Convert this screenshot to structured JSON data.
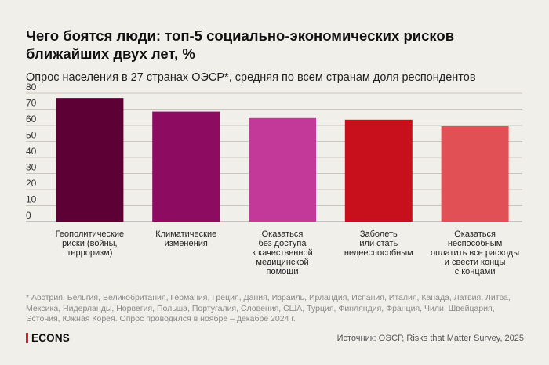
{
  "header": {
    "title": "Чего боятся люди: топ-5 социально-экономических рисков ближайших двух лет, %",
    "subtitle": "Опрос населения в 27 странах ОЭСР*, средняя по всем странам доля респондентов"
  },
  "chart_data": {
    "type": "bar",
    "categories": [
      [
        "Геополитические",
        "риски (войны,",
        "терроризм)"
      ],
      [
        "Климатические",
        "изменения"
      ],
      [
        "Оказаться",
        "без доступа",
        "к качественной",
        "медицинской",
        "помощи"
      ],
      [
        "Заболеть",
        "или стать",
        "недееспособным"
      ],
      [
        "Оказаться",
        "неспособным",
        "оплатить все расходы",
        "и свести концы",
        "с концами"
      ]
    ],
    "values": [
      77,
      68.5,
      64.5,
      63.5,
      59.5
    ],
    "colors": [
      "#5c0035",
      "#8e0b62",
      "#c2399a",
      "#c8101c",
      "#e05055"
    ],
    "yticks": [
      "0",
      "10",
      "20",
      "30",
      "40",
      "50",
      "60",
      "70",
      "80"
    ],
    "ylim": [
      0,
      80
    ],
    "grid": true,
    "legend": "none"
  },
  "footer": {
    "footnote": "* Австрия, Бельгия, Великобритания, Германия, Греция, Дания, Израиль, Ирландия, Испания, Италия, Канада, Латвия, Литва, Мексика, Нидерланды, Норвегия, Польша, Португалия, Словения, США, Турция, Финляндия, Франция, Чили, Швейцария, Эстония, Южная Корея. Опрос проводился в ноябре – декабре 2024 г.",
    "logo": "ECONS",
    "source": "Источник: ОЭСР, Risks that Matter Survey, 2025"
  }
}
